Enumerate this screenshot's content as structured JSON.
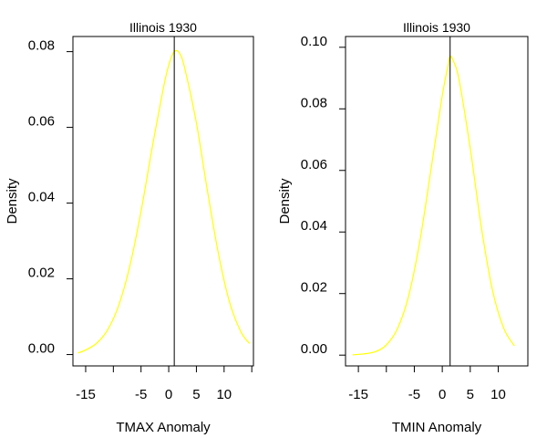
{
  "chart_data": [
    {
      "type": "line",
      "title": "Illinois 1930",
      "xlabel": "TMAX Anomaly",
      "ylabel": "Density",
      "xlim": [
        -17.3,
        15.3
      ],
      "ylim": [
        -0.003,
        0.084
      ],
      "x_ticks": [
        -15,
        -10,
        -5,
        0,
        5,
        10,
        15
      ],
      "x_tick_labels": [
        "-15",
        "",
        "-5",
        "0",
        "5",
        "10",
        ""
      ],
      "y_ticks": [
        0.0,
        0.02,
        0.04,
        0.06,
        0.08
      ],
      "y_tick_labels": [
        "0.00",
        "0.02",
        "0.04",
        "0.06",
        "0.08"
      ],
      "series": [
        {
          "color": "#ffff00",
          "x": [
            -16.4,
            -15,
            -13,
            -11,
            -9,
            -7,
            -5,
            -3,
            -1,
            0,
            1,
            2,
            3,
            5,
            7,
            9,
            11,
            13,
            14.6
          ],
          "y": [
            0.0004,
            0.0012,
            0.003,
            0.0066,
            0.0131,
            0.0235,
            0.0378,
            0.0545,
            0.0701,
            0.0764,
            0.08,
            0.0795,
            0.075,
            0.0612,
            0.0432,
            0.0265,
            0.0138,
            0.0061,
            0.0029
          ]
        }
      ],
      "vline_x": 1.0,
      "grid": false,
      "legend": "none"
    },
    {
      "type": "line",
      "title": "Illinois 1930",
      "xlabel": "TMIN Anomaly",
      "ylabel": "Density",
      "xlim": [
        -17.3,
        15.3
      ],
      "ylim": [
        -0.0035,
        0.1035
      ],
      "x_ticks": [
        -15,
        -10,
        -5,
        0,
        5,
        10
      ],
      "x_tick_labels": [
        "-15",
        "",
        "-5",
        "0",
        "5",
        "10"
      ],
      "y_ticks": [
        0.0,
        0.02,
        0.04,
        0.06,
        0.08,
        0.1
      ],
      "y_tick_labels": [
        "0.00",
        "0.02",
        "0.04",
        "0.06",
        "0.08",
        "0.10"
      ],
      "series": [
        {
          "color": "#ffff00",
          "x": [
            -16.0,
            -14,
            -12,
            -10,
            -8,
            -6,
            -4,
            -2,
            0,
            1,
            1.4,
            2,
            3,
            5,
            7,
            9,
            11,
            12.9
          ],
          "y": [
            0.0001,
            0.0004,
            0.0011,
            0.0033,
            0.0086,
            0.0193,
            0.0371,
            0.0605,
            0.0843,
            0.0938,
            0.097,
            0.0955,
            0.0895,
            0.0672,
            0.0414,
            0.0209,
            0.0087,
            0.003
          ]
        }
      ],
      "vline_x": 1.4,
      "grid": false,
      "legend": "none"
    }
  ]
}
